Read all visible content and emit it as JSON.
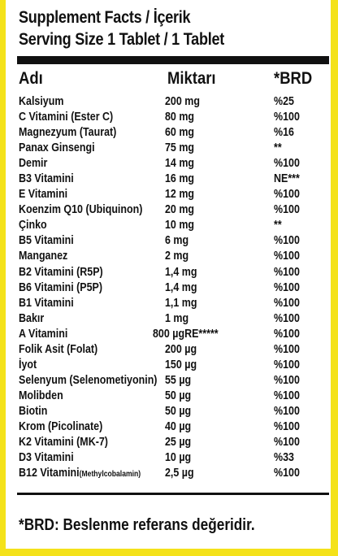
{
  "header": {
    "title_line1": "Supplement Facts / İçerik",
    "title_line2": "Serving Size 1 Tablet / 1 Tablet"
  },
  "columns": {
    "name": "Adı",
    "amount": "Miktarı",
    "brd": "*BRD"
  },
  "rows": [
    {
      "name": "Kalsiyum",
      "amount": "200 mg",
      "brd": "%25"
    },
    {
      "name": "C Vitamini (Ester C)",
      "amount": "80 mg",
      "brd": "%100"
    },
    {
      "name": "Magnezyum (Taurat)",
      "amount": "60 mg",
      "brd": "%16"
    },
    {
      "name": "Panax Ginsengi",
      "amount": "75 mg",
      "brd": "**"
    },
    {
      "name": "Demir",
      "amount": "14 mg",
      "brd": "%100"
    },
    {
      "name": "B3 Vitamini",
      "amount": "16 mg",
      "brd": "NE***"
    },
    {
      "name": "E Vitamini",
      "amount": "12 mg",
      "brd": "%100"
    },
    {
      "name": "Koenzim Q10 (Ubiquinon)",
      "amount": "20 mg",
      "brd": "%100"
    },
    {
      "name": "Çinko",
      "amount": "10 mg",
      "brd": "**"
    },
    {
      "name": "B5 Vitamini",
      "amount": "6 mg",
      "brd": "%100"
    },
    {
      "name": "Manganez",
      "amount": "2 mg",
      "brd": "%100"
    },
    {
      "name": "B2 Vitamini (R5P)",
      "amount": "1,4 mg",
      "brd": "%100"
    },
    {
      "name": "B6 Vitamini (P5P)",
      "amount": "1,4 mg",
      "brd": "%100"
    },
    {
      "name": "B1 Vitamini",
      "amount": "1,1 mg",
      "brd": "%100"
    },
    {
      "name": "Bakır",
      "amount": "1 mg",
      "brd": "%100"
    },
    {
      "name": "A Vitamini",
      "amount": "800 µgRE*****",
      "brd": "%100"
    },
    {
      "name": "Folik Asit (Folat)",
      "amount": "200 µg",
      "brd": "%100"
    },
    {
      "name": "İyot",
      "amount": "150 µg",
      "brd": "%100"
    },
    {
      "name": "Selenyum (Selenometiyonin)",
      "amount": "55 µg",
      "brd": "%100"
    },
    {
      "name": "Molibden",
      "amount": "50 µg",
      "brd": "%100"
    },
    {
      "name": "Biotin",
      "amount": "50 µg",
      "brd": "%100"
    },
    {
      "name": "Krom (Picolinate)",
      "amount": "40 µg",
      "brd": "%100"
    },
    {
      "name": "K2 Vitamini (MK-7)",
      "amount": "25 µg",
      "brd": "%100"
    },
    {
      "name": "D3 Vitamini",
      "amount": "10 µg",
      "brd": "%33"
    },
    {
      "name": "B12 Vitamini",
      "name_sub": "(Methylcobalamin)",
      "amount": "2,5 µg",
      "brd": "%100"
    }
  ],
  "footer": {
    "note": "*BRD: Beslenme referans değeridir."
  },
  "colors": {
    "border": "#f4e21a",
    "text": "#111111",
    "background": "#ffffff"
  }
}
